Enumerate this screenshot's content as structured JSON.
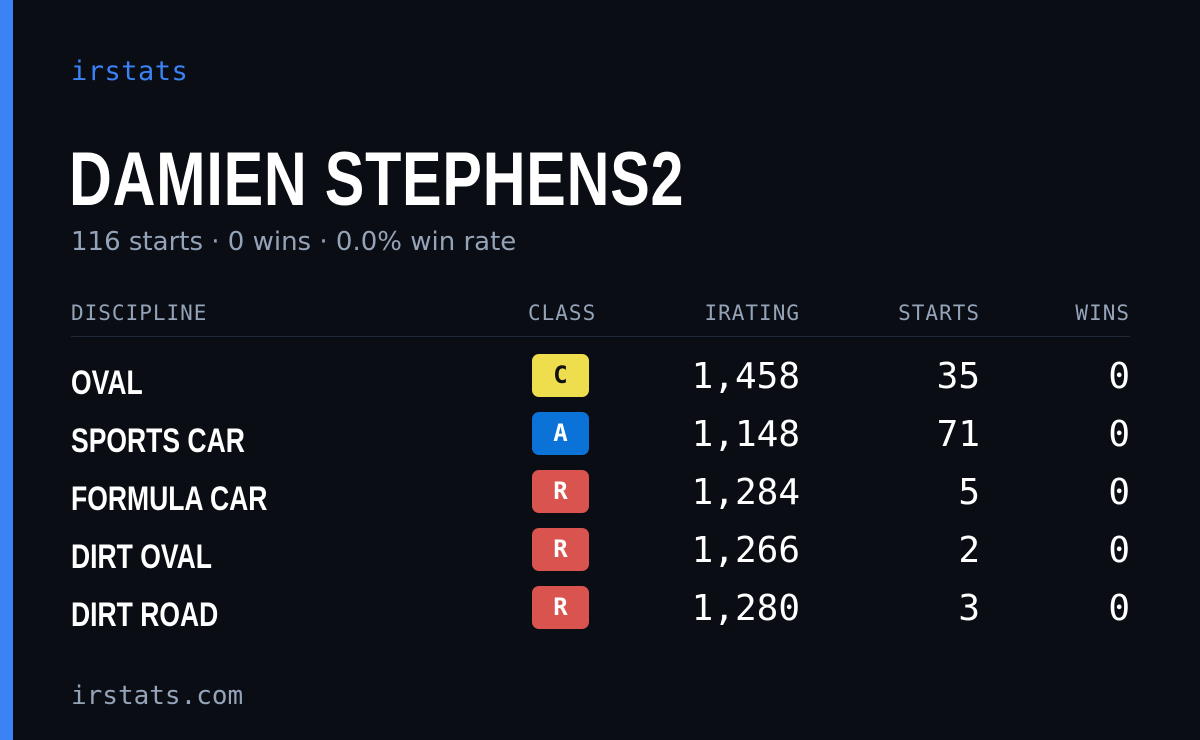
{
  "brand": "irstats",
  "driver": {
    "name": "DAMIEN STEPHENS2",
    "summary": "116 starts · 0 wins · 0.0% win rate"
  },
  "table": {
    "headers": {
      "discipline": "DISCIPLINE",
      "class": "CLASS",
      "irating": "IRATING",
      "starts": "STARTS",
      "wins": "WINS"
    },
    "rows": [
      {
        "discipline": "OVAL",
        "class": "C",
        "class_color": "#eedd4d",
        "class_text_color": "#111111",
        "irating": "1,458",
        "starts": "35",
        "wins": "0"
      },
      {
        "discipline": "SPORTS CAR",
        "class": "A",
        "class_color": "#0b72d8",
        "class_text_color": "#ffffff",
        "irating": "1,148",
        "starts": "71",
        "wins": "0"
      },
      {
        "discipline": "FORMULA CAR",
        "class": "R",
        "class_color": "#d9534f",
        "class_text_color": "#ffffff",
        "irating": "1,284",
        "starts": "5",
        "wins": "0"
      },
      {
        "discipline": "DIRT OVAL",
        "class": "R",
        "class_color": "#d9534f",
        "class_text_color": "#ffffff",
        "irating": "1,266",
        "starts": "2",
        "wins": "0"
      },
      {
        "discipline": "DIRT ROAD",
        "class": "R",
        "class_color": "#d9534f",
        "class_text_color": "#ffffff",
        "irating": "1,280",
        "starts": "3",
        "wins": "0"
      }
    ]
  },
  "footer": "irstats.com",
  "colors": {
    "background": "#0a0d14",
    "accent": "#3b82f6",
    "muted_text": "#94a3b8"
  }
}
